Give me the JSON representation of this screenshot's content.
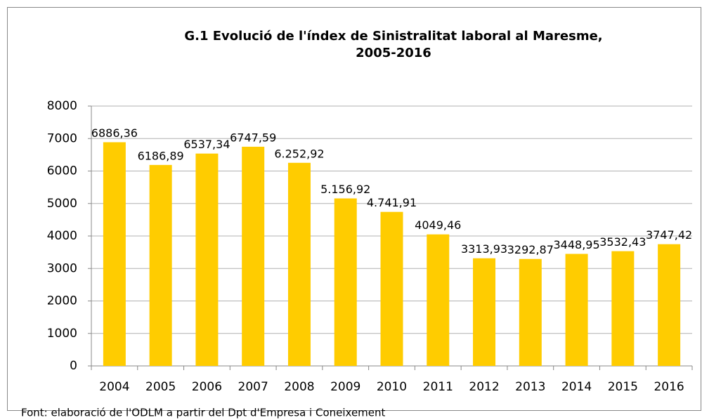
{
  "chart_data": {
    "type": "bar",
    "title_lines": [
      "G.1 Evolució de l'índex de Sinistralitat laboral al Maresme,",
      "2005-2016"
    ],
    "categories": [
      "2004",
      "2005",
      "2006",
      "2007",
      "2008",
      "2009",
      "2010",
      "2011",
      "2012",
      "2013",
      "2014",
      "2015",
      "2016"
    ],
    "values": [
      6886.36,
      6186.89,
      6537.34,
      6747.59,
      6252.92,
      5156.92,
      4741.91,
      4049.46,
      3313.93,
      3292.87,
      3448.95,
      3532.43,
      3747.42
    ],
    "value_labels": [
      "6886,36",
      "6186,89",
      "6537,34",
      "6747,59",
      "6.252,92",
      "5.156,92",
      "4.741,91",
      "4049,46",
      "3313,93",
      "3292,87",
      "3448,95",
      "3532,43",
      "3747,42"
    ],
    "color": "#ffcc00",
    "ylim": [
      0,
      8000
    ],
    "yticks": [
      0,
      1000,
      2000,
      3000,
      4000,
      5000,
      6000,
      7000,
      8000
    ],
    "grid": true,
    "source": "Font: elaboració de l'ODLM a partir del Dpt d'Empresa i Coneixement"
  }
}
